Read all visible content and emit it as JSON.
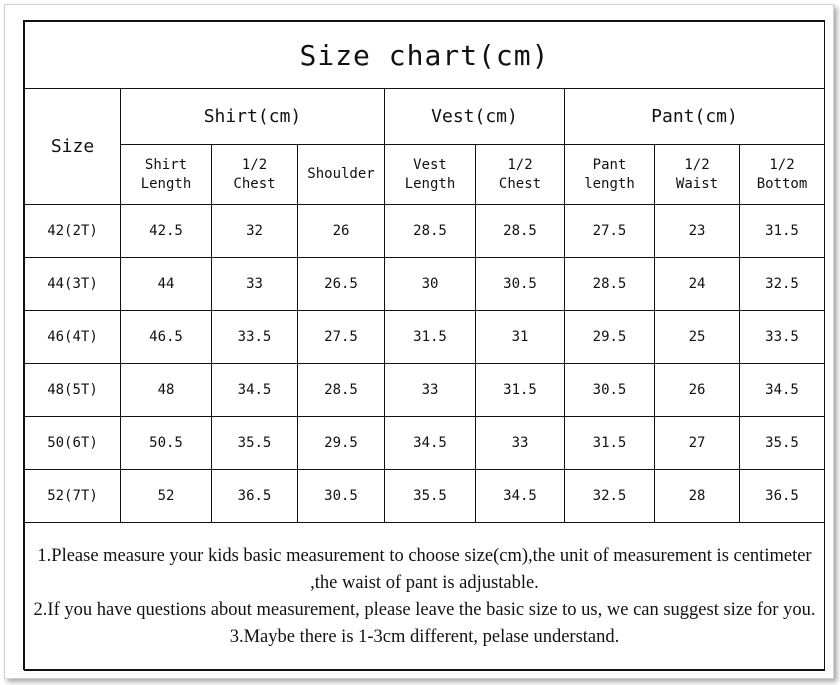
{
  "title": "Size chart(cm)",
  "size_label": "Size",
  "groups": [
    {
      "label": "Shirt(cm)",
      "columns": [
        "Shirt\nLength",
        "1/2\nChest",
        "Shoulder"
      ]
    },
    {
      "label": "Vest(cm)",
      "columns": [
        "Vest\nLength",
        "1/2\nChest"
      ]
    },
    {
      "label": "Pant(cm)",
      "columns": [
        "Pant\nlength",
        "1/2\nWaist",
        "1/2\nBottom"
      ]
    }
  ],
  "rows": [
    {
      "size": "42(2T)",
      "values": [
        "42.5",
        "32",
        "26",
        "28.5",
        "28.5",
        "27.5",
        "23",
        "31.5"
      ]
    },
    {
      "size": "44(3T)",
      "values": [
        "44",
        "33",
        "26.5",
        "30",
        "30.5",
        "28.5",
        "24",
        "32.5"
      ]
    },
    {
      "size": "46(4T)",
      "values": [
        "46.5",
        "33.5",
        "27.5",
        "31.5",
        "31",
        "29.5",
        "25",
        "33.5"
      ]
    },
    {
      "size": "48(5T)",
      "values": [
        "48",
        "34.5",
        "28.5",
        "33",
        "31.5",
        "30.5",
        "26",
        "34.5"
      ]
    },
    {
      "size": "50(6T)",
      "values": [
        "50.5",
        "35.5",
        "29.5",
        "34.5",
        "33",
        "31.5",
        "27",
        "35.5"
      ]
    },
    {
      "size": "52(7T)",
      "values": [
        "52",
        "36.5",
        "30.5",
        "35.5",
        "34.5",
        "32.5",
        "28",
        "36.5"
      ]
    }
  ],
  "notes": [
    "1.Please measure your kids basic measurement to choose size(cm),the unit of measurement is centimeter ,the waist of pant is adjustable.",
    "2.If you have questions about measurement, please leave the basic size to us, we can suggest size for you.",
    "3.Maybe there is 1-3cm different, pelase understand."
  ]
}
